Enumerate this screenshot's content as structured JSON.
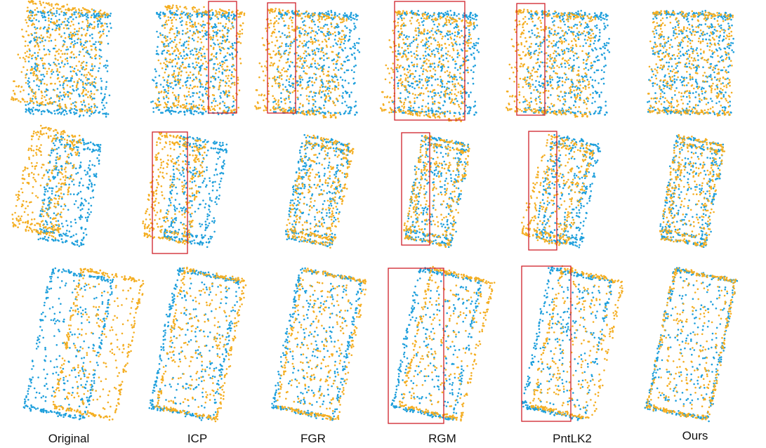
{
  "columns": [
    "Original",
    "ICP",
    "FGR",
    "RGM",
    "PntLK2",
    "Ours"
  ]
}
